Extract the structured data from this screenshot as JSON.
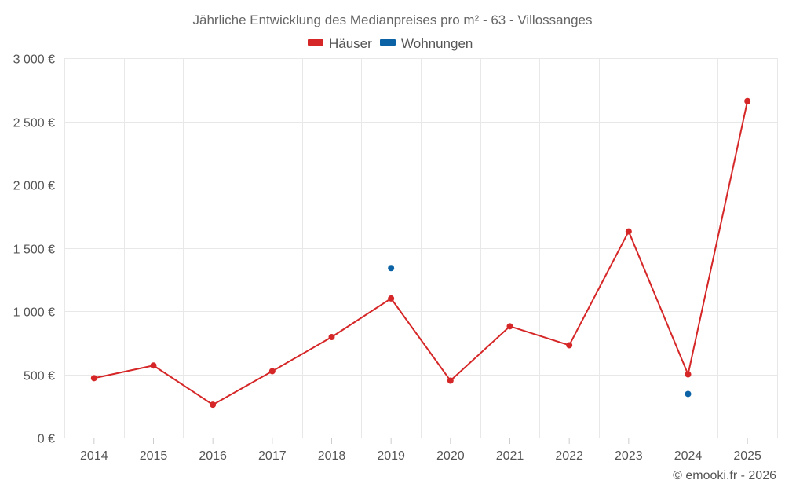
{
  "chart_data": {
    "type": "line",
    "title": "Jährliche Entwicklung des Medianpreises pro m² - 63 - Villossanges",
    "categories": [
      "2014",
      "2015",
      "2016",
      "2017",
      "2018",
      "2019",
      "2020",
      "2021",
      "2022",
      "2023",
      "2024",
      "2025"
    ],
    "y_ticks": [
      "0 €",
      "500 €",
      "1 000 €",
      "1 500 €",
      "2 000 €",
      "2 500 €",
      "3 000 €"
    ],
    "ylim": [
      0,
      3000
    ],
    "grid": true,
    "legend_position": "top-center",
    "series": [
      {
        "name": "Häuser",
        "color": "#d62728",
        "values": [
          470,
          570,
          260,
          525,
          795,
          1100,
          450,
          880,
          730,
          1630,
          500,
          2660
        ]
      },
      {
        "name": "Wohnungen",
        "color": "#0b63a5",
        "values": [
          null,
          null,
          null,
          null,
          null,
          1340,
          null,
          null,
          null,
          null,
          345,
          null
        ]
      }
    ]
  },
  "credit": "© emooki.fr - 2026"
}
